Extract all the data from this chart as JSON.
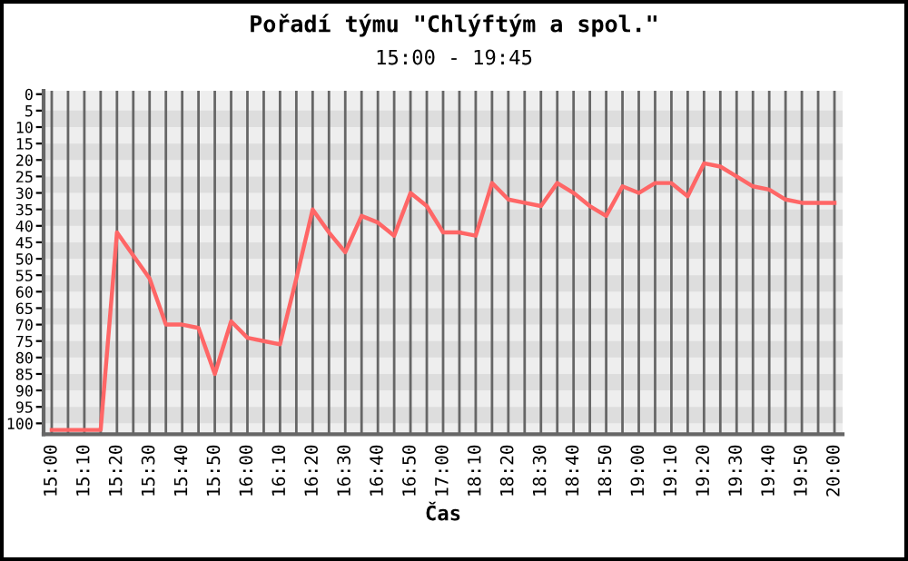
{
  "chart_data": {
    "type": "line",
    "title": "Pořadí týmu \"Chlýftým a spol.\"",
    "subtitle": "15:00 - 19:45",
    "xlabel": "Čas",
    "categories": [
      "15:00",
      null,
      "15:10",
      null,
      "15:20",
      null,
      "15:30",
      null,
      "15:40",
      null,
      "15:50",
      null,
      "16:00",
      null,
      "16:10",
      null,
      "16:20",
      null,
      "16:30",
      null,
      "16:40",
      null,
      "16:50",
      null,
      "17:00",
      null,
      "18:10",
      null,
      "18:20",
      null,
      "18:30",
      null,
      "18:40",
      null,
      "18:50",
      null,
      "19:00",
      null,
      "19:10",
      null,
      "19:20",
      null,
      "19:30",
      null,
      "19:40",
      null,
      "19:50",
      null,
      "20:00"
    ],
    "series": [
      {
        "color": "#ff6666",
        "values": [
          102,
          102,
          102,
          102,
          42,
          49,
          56,
          70,
          70,
          71,
          85,
          69,
          74,
          75,
          76,
          56,
          35,
          42,
          48,
          37,
          39,
          43,
          30,
          34,
          42,
          42,
          43,
          27,
          32,
          33,
          34,
          27,
          30,
          34,
          37,
          28,
          30,
          27,
          27,
          31,
          21,
          22,
          25,
          28,
          29,
          32,
          33,
          33,
          33
        ]
      }
    ],
    "ylim": [
      103.3,
      -1
    ],
    "yticks": [
      0,
      5,
      10,
      15,
      20,
      25,
      30,
      35,
      40,
      45,
      50,
      55,
      60,
      65,
      70,
      75,
      80,
      85,
      90,
      95,
      100
    ],
    "grid": true,
    "marker": "none",
    "line_style": "solid"
  }
}
